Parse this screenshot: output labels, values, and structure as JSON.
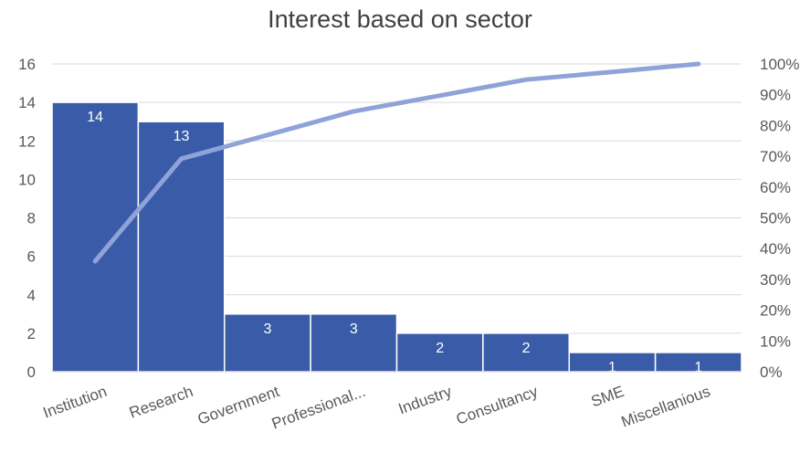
{
  "chart_data": {
    "type": "bar",
    "title": "Interest based on sector",
    "categories": [
      "Institution",
      "Research",
      "Government",
      "Professional...",
      "Industry",
      "Consultancy",
      "SME",
      "Miscellanious"
    ],
    "values": [
      14,
      13,
      3,
      3,
      2,
      2,
      1,
      1
    ],
    "data_labels": [
      "14",
      "13",
      "3",
      "3",
      "2",
      "2",
      "1",
      "1"
    ],
    "bar_color": "#3a5ca8",
    "cumulative_percent": [
      35.9,
      69.2,
      76.9,
      84.6,
      89.7,
      94.9,
      97.4,
      100
    ],
    "line_color": "#8fa3d9",
    "ylim": [
      0,
      16
    ],
    "y_ticks": [
      "0",
      "2",
      "4",
      "6",
      "8",
      "10",
      "12",
      "14",
      "16"
    ],
    "y2lim": [
      0,
      100
    ],
    "y2_ticks": [
      "0%",
      "10%",
      "20%",
      "30%",
      "40%",
      "50%",
      "60%",
      "70%",
      "80%",
      "90%",
      "100%"
    ],
    "grid": true,
    "legend": "none"
  }
}
